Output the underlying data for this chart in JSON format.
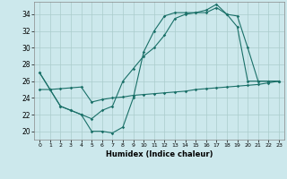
{
  "xlabel": "Humidex (Indice chaleur)",
  "bg_color": "#cce8ec",
  "grid_color": "#aacccc",
  "line_color": "#1a7068",
  "xlim": [
    -0.5,
    23.5
  ],
  "ylim": [
    19.0,
    35.5
  ],
  "xticks": [
    0,
    1,
    2,
    3,
    4,
    5,
    6,
    7,
    8,
    9,
    10,
    11,
    12,
    13,
    14,
    15,
    16,
    17,
    18,
    19,
    20,
    21,
    22,
    23
  ],
  "yticks": [
    20,
    22,
    24,
    26,
    28,
    30,
    32,
    34
  ],
  "line1_x": [
    0,
    1,
    2,
    3,
    4,
    5,
    6,
    7,
    8,
    9,
    10,
    11,
    12,
    13,
    14,
    15,
    16,
    17,
    18,
    19,
    20,
    21,
    22,
    23
  ],
  "line1_y": [
    27.0,
    25.0,
    23.0,
    22.5,
    22.0,
    20.0,
    20.0,
    19.8,
    20.5,
    24.0,
    29.5,
    32.0,
    33.8,
    34.2,
    34.2,
    34.2,
    34.5,
    35.2,
    34.0,
    33.8,
    30.0,
    26.0,
    26.0,
    26.0
  ],
  "line2_x": [
    0,
    1,
    2,
    3,
    4,
    5,
    6,
    7,
    8,
    9,
    10,
    11,
    12,
    13,
    14,
    15,
    16,
    17,
    18,
    19,
    20,
    21,
    22,
    23
  ],
  "line2_y": [
    27.0,
    25.0,
    23.0,
    22.5,
    22.0,
    21.5,
    22.5,
    23.0,
    26.0,
    27.5,
    29.0,
    30.0,
    31.5,
    33.5,
    34.0,
    34.2,
    34.2,
    34.8,
    34.0,
    32.5,
    26.0,
    26.0,
    26.0,
    26.0
  ],
  "line3_x": [
    0,
    1,
    2,
    3,
    4,
    5,
    6,
    7,
    8,
    9,
    10,
    11,
    12,
    13,
    14,
    15,
    16,
    17,
    18,
    19,
    20,
    21,
    22,
    23
  ],
  "line3_y": [
    25.0,
    25.0,
    25.1,
    25.2,
    25.3,
    23.5,
    23.8,
    24.0,
    24.1,
    24.3,
    24.4,
    24.5,
    24.6,
    24.7,
    24.8,
    25.0,
    25.1,
    25.2,
    25.3,
    25.4,
    25.5,
    25.6,
    25.8,
    26.0
  ]
}
